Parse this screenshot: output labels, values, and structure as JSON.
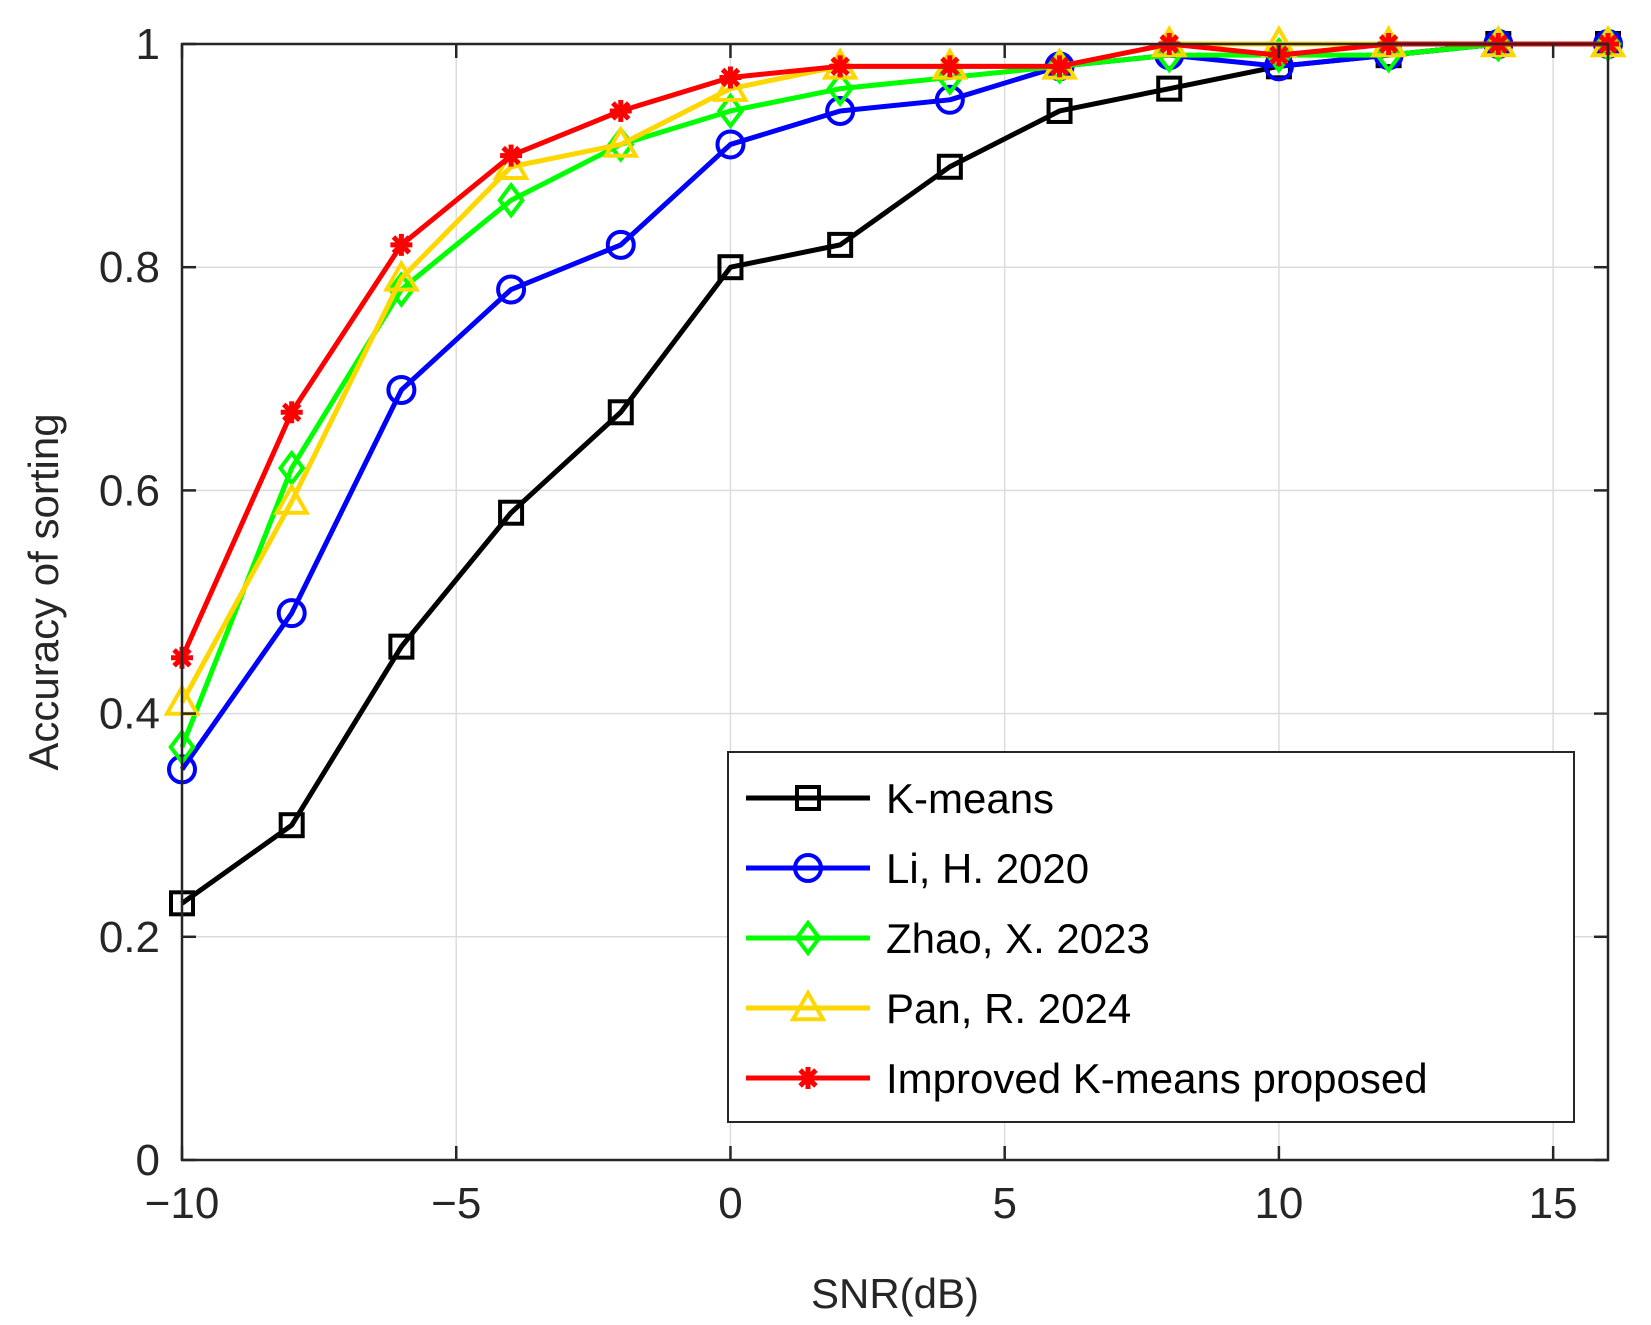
{
  "chart_data": {
    "type": "line",
    "title": "",
    "xlabel": "SNR(dB)",
    "ylabel": "Accuracy of sorting",
    "xlim": [
      -10,
      16
    ],
    "ylim": [
      0,
      1
    ],
    "xticks": [
      -10,
      -5,
      0,
      5,
      10,
      15
    ],
    "xtick_labels": [
      "−10",
      "−5",
      "0",
      "5",
      "10",
      "15"
    ],
    "yticks": [
      0,
      0.2,
      0.4,
      0.6,
      0.8,
      1
    ],
    "ytick_labels": [
      "0",
      "0.2",
      "0.4",
      "0.6",
      "0.8",
      "1"
    ],
    "grid": true,
    "legend_position": "bottom-right",
    "x": [
      -10,
      -8,
      -6,
      -4,
      -2,
      0,
      2,
      4,
      6,
      8,
      10,
      12,
      14,
      16
    ],
    "series": [
      {
        "name": "K-means",
        "color": "#000000",
        "marker": "square",
        "values": [
          0.23,
          0.3,
          0.46,
          0.58,
          0.67,
          0.8,
          0.82,
          0.89,
          0.94,
          0.96,
          0.98,
          0.99,
          1.0,
          1.0
        ]
      },
      {
        "name": "Li, H. 2020",
        "color": "#0000ff",
        "marker": "circle",
        "values": [
          0.35,
          0.49,
          0.69,
          0.78,
          0.82,
          0.91,
          0.94,
          0.95,
          0.98,
          0.99,
          0.98,
          0.99,
          1.0,
          1.0
        ]
      },
      {
        "name": "Zhao, X. 2023",
        "color": "#00ff00",
        "marker": "diamond",
        "values": [
          0.37,
          0.62,
          0.78,
          0.86,
          0.91,
          0.94,
          0.96,
          0.97,
          0.98,
          0.99,
          0.99,
          0.99,
          1.0,
          1.0
        ]
      },
      {
        "name": "Pan, R. 2024",
        "color": "#ffd700",
        "marker": "triangle",
        "values": [
          0.41,
          0.59,
          0.79,
          0.89,
          0.91,
          0.96,
          0.98,
          0.98,
          0.98,
          1.0,
          1.0,
          1.0,
          1.0,
          1.0
        ]
      },
      {
        "name": "Improved K-means proposed",
        "color": "#ff0000",
        "marker": "asterisk",
        "values": [
          0.45,
          0.67,
          0.82,
          0.9,
          0.94,
          0.97,
          0.98,
          0.98,
          0.98,
          1.0,
          0.99,
          1.0,
          1.0,
          1.0
        ]
      }
    ]
  }
}
